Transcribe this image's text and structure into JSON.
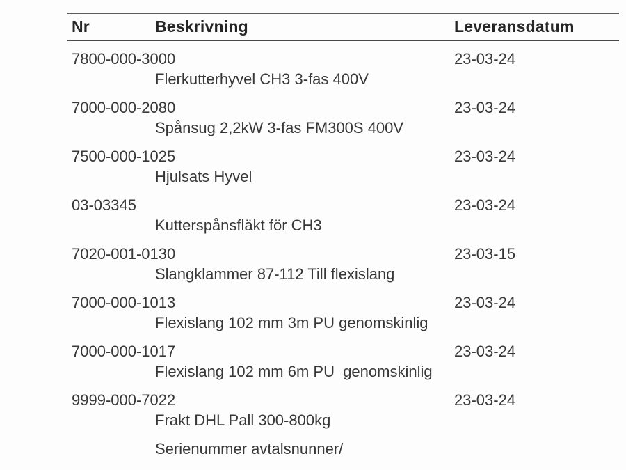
{
  "page": {
    "background_color": "#fdfdfd",
    "text_color": "#383838",
    "rule_color": "#4a4a4a"
  },
  "table": {
    "headers": {
      "nr": "Nr",
      "description": "Beskrivning",
      "delivery_date": "Leveransdatum"
    },
    "rows": [
      {
        "nr": "7800-000-3000",
        "description": "Flerkutterhyvel CH3 3-fas 400V",
        "delivery_date": "23-03-24"
      },
      {
        "nr": "7000-000-2080",
        "description": "Spånsug 2,2kW 3-fas FM300S 400V",
        "delivery_date": "23-03-24"
      },
      {
        "nr": "7500-000-1025",
        "description": "Hjulsats Hyvel",
        "delivery_date": "23-03-24"
      },
      {
        "nr": "03-03345",
        "description": "Kutterspånsfläkt för CH3",
        "delivery_date": "23-03-24"
      },
      {
        "nr": "7020-001-0130",
        "description": "Slangklammer 87-112 Till flexislang",
        "delivery_date": "23-03-15"
      },
      {
        "nr": "7000-000-1013",
        "description": "Flexislang 102 mm 3m PU genomskinlig",
        "delivery_date": "23-03-24"
      },
      {
        "nr": "7000-000-1017",
        "description": "Flexislang 102 mm 6m PU  genomskinlig",
        "delivery_date": "23-03-24"
      },
      {
        "nr": "9999-000-7022",
        "description": "Frakt DHL Pall 300-800kg",
        "delivery_date": "23-03-24"
      }
    ],
    "footer_note": "Serienummer avtalsnunner/"
  }
}
